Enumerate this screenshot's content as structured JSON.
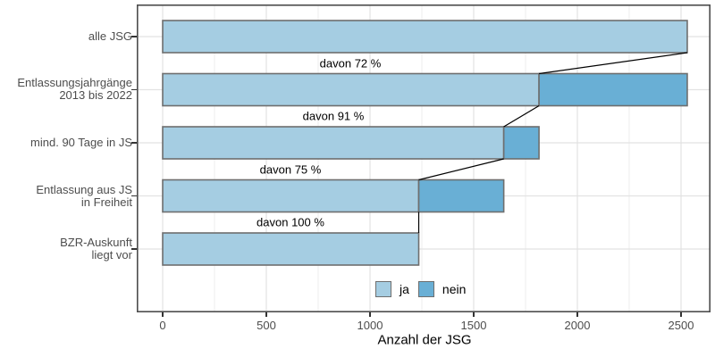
{
  "chart_data": {
    "type": "bar",
    "orientation": "horizontal",
    "stacked": true,
    "funnel": true,
    "title": "",
    "xlabel": "Anzahl der JSG",
    "ylabel": "",
    "categories": [
      "alle JSG",
      "Entlassungsjahrgänge 2013 bis 2022",
      "mind. 90 Tage in JS",
      "Entlassung aus JS in Freiheit",
      "BZR-Auskunft liegt vor"
    ],
    "category_lines": [
      [
        "alle JSG"
      ],
      [
        "Entlassungsjahrgänge",
        "2013 bis 2022"
      ],
      [
        "mind. 90 Tage in JS"
      ],
      [
        "Entlassung aus JS",
        "in Freiheit"
      ],
      [
        "BZR-Auskunft",
        "liegt vor"
      ]
    ],
    "series": [
      {
        "name": "ja",
        "color": "#a5cde2",
        "values": [
          2530,
          1815,
          1645,
          1235,
          1235
        ]
      },
      {
        "name": "nein",
        "color": "#69afd5",
        "values": [
          0,
          715,
          170,
          410,
          0
        ]
      }
    ],
    "totals": [
      2530,
      2530,
      1815,
      1645,
      1235
    ],
    "percent_labels": [
      "davon 72 %",
      "davon 91 %",
      "davon 75 %",
      "davon 100 %"
    ],
    "x_major_ticks": [
      0,
      500,
      1000,
      1500,
      2000,
      2500
    ],
    "x_tick_labels": [
      "0",
      "500",
      "1000",
      "1500",
      "2000",
      "2500"
    ],
    "x_minor_ticks": [
      250,
      750,
      1250,
      1750,
      2250
    ],
    "xlim": [
      -125,
      2642
    ],
    "grid": "vertical major+minor gridlines, horizontal major gridlines per category",
    "legend_position": "bottom center, inside plot area",
    "connector_note": "thin black lines link the end of the 'ja' segment of each bar to the end of the 'ja' segment of the bar below"
  },
  "colors": {
    "ja_fill": "#a5cde2",
    "nein_fill": "#69afd5",
    "bar_border": "#6e6e6e",
    "panel_border": "#4d4d4d",
    "grid_major": "#e2e2e2",
    "grid_minor": "#eeeeee",
    "axis_text": "#4d4d4d",
    "label_text": "#000000",
    "connector": "#000000",
    "background": "#ffffff",
    "tick_mark": "#333333"
  }
}
